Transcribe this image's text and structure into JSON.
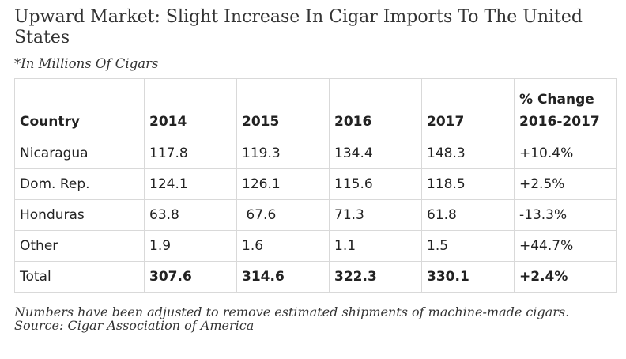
{
  "title": "Upward Market: Slight Increase In Cigar Imports To The United States",
  "subtitle": "*In Millions Of Cigars",
  "table": {
    "headers": [
      "Country",
      "2014",
      "2015",
      "2016",
      "2017",
      "% Change 2016-2017"
    ],
    "rows": [
      [
        "Nicaragua",
        "117.8",
        "119.3",
        "134.4",
        "148.3",
        "+10.4%"
      ],
      [
        "Dom. Rep.",
        "124.1",
        "126.1",
        "115.6",
        "118.5",
        "+2.5%"
      ],
      [
        "Honduras",
        "63.8",
        " 67.6",
        "71.3",
        "61.8",
        "-13.3%"
      ],
      [
        "Other",
        "1.9",
        "1.6",
        "1.1",
        "1.5",
        "+44.7%"
      ],
      [
        "Total",
        "307.6",
        "314.6",
        "322.3",
        "330.1",
        "+2.4%"
      ]
    ]
  },
  "notes": {
    "adjustment": "Numbers have been adjusted to remove estimated shipments of machine-made cigars.",
    "source": "Source: Cigar Association of America"
  }
}
